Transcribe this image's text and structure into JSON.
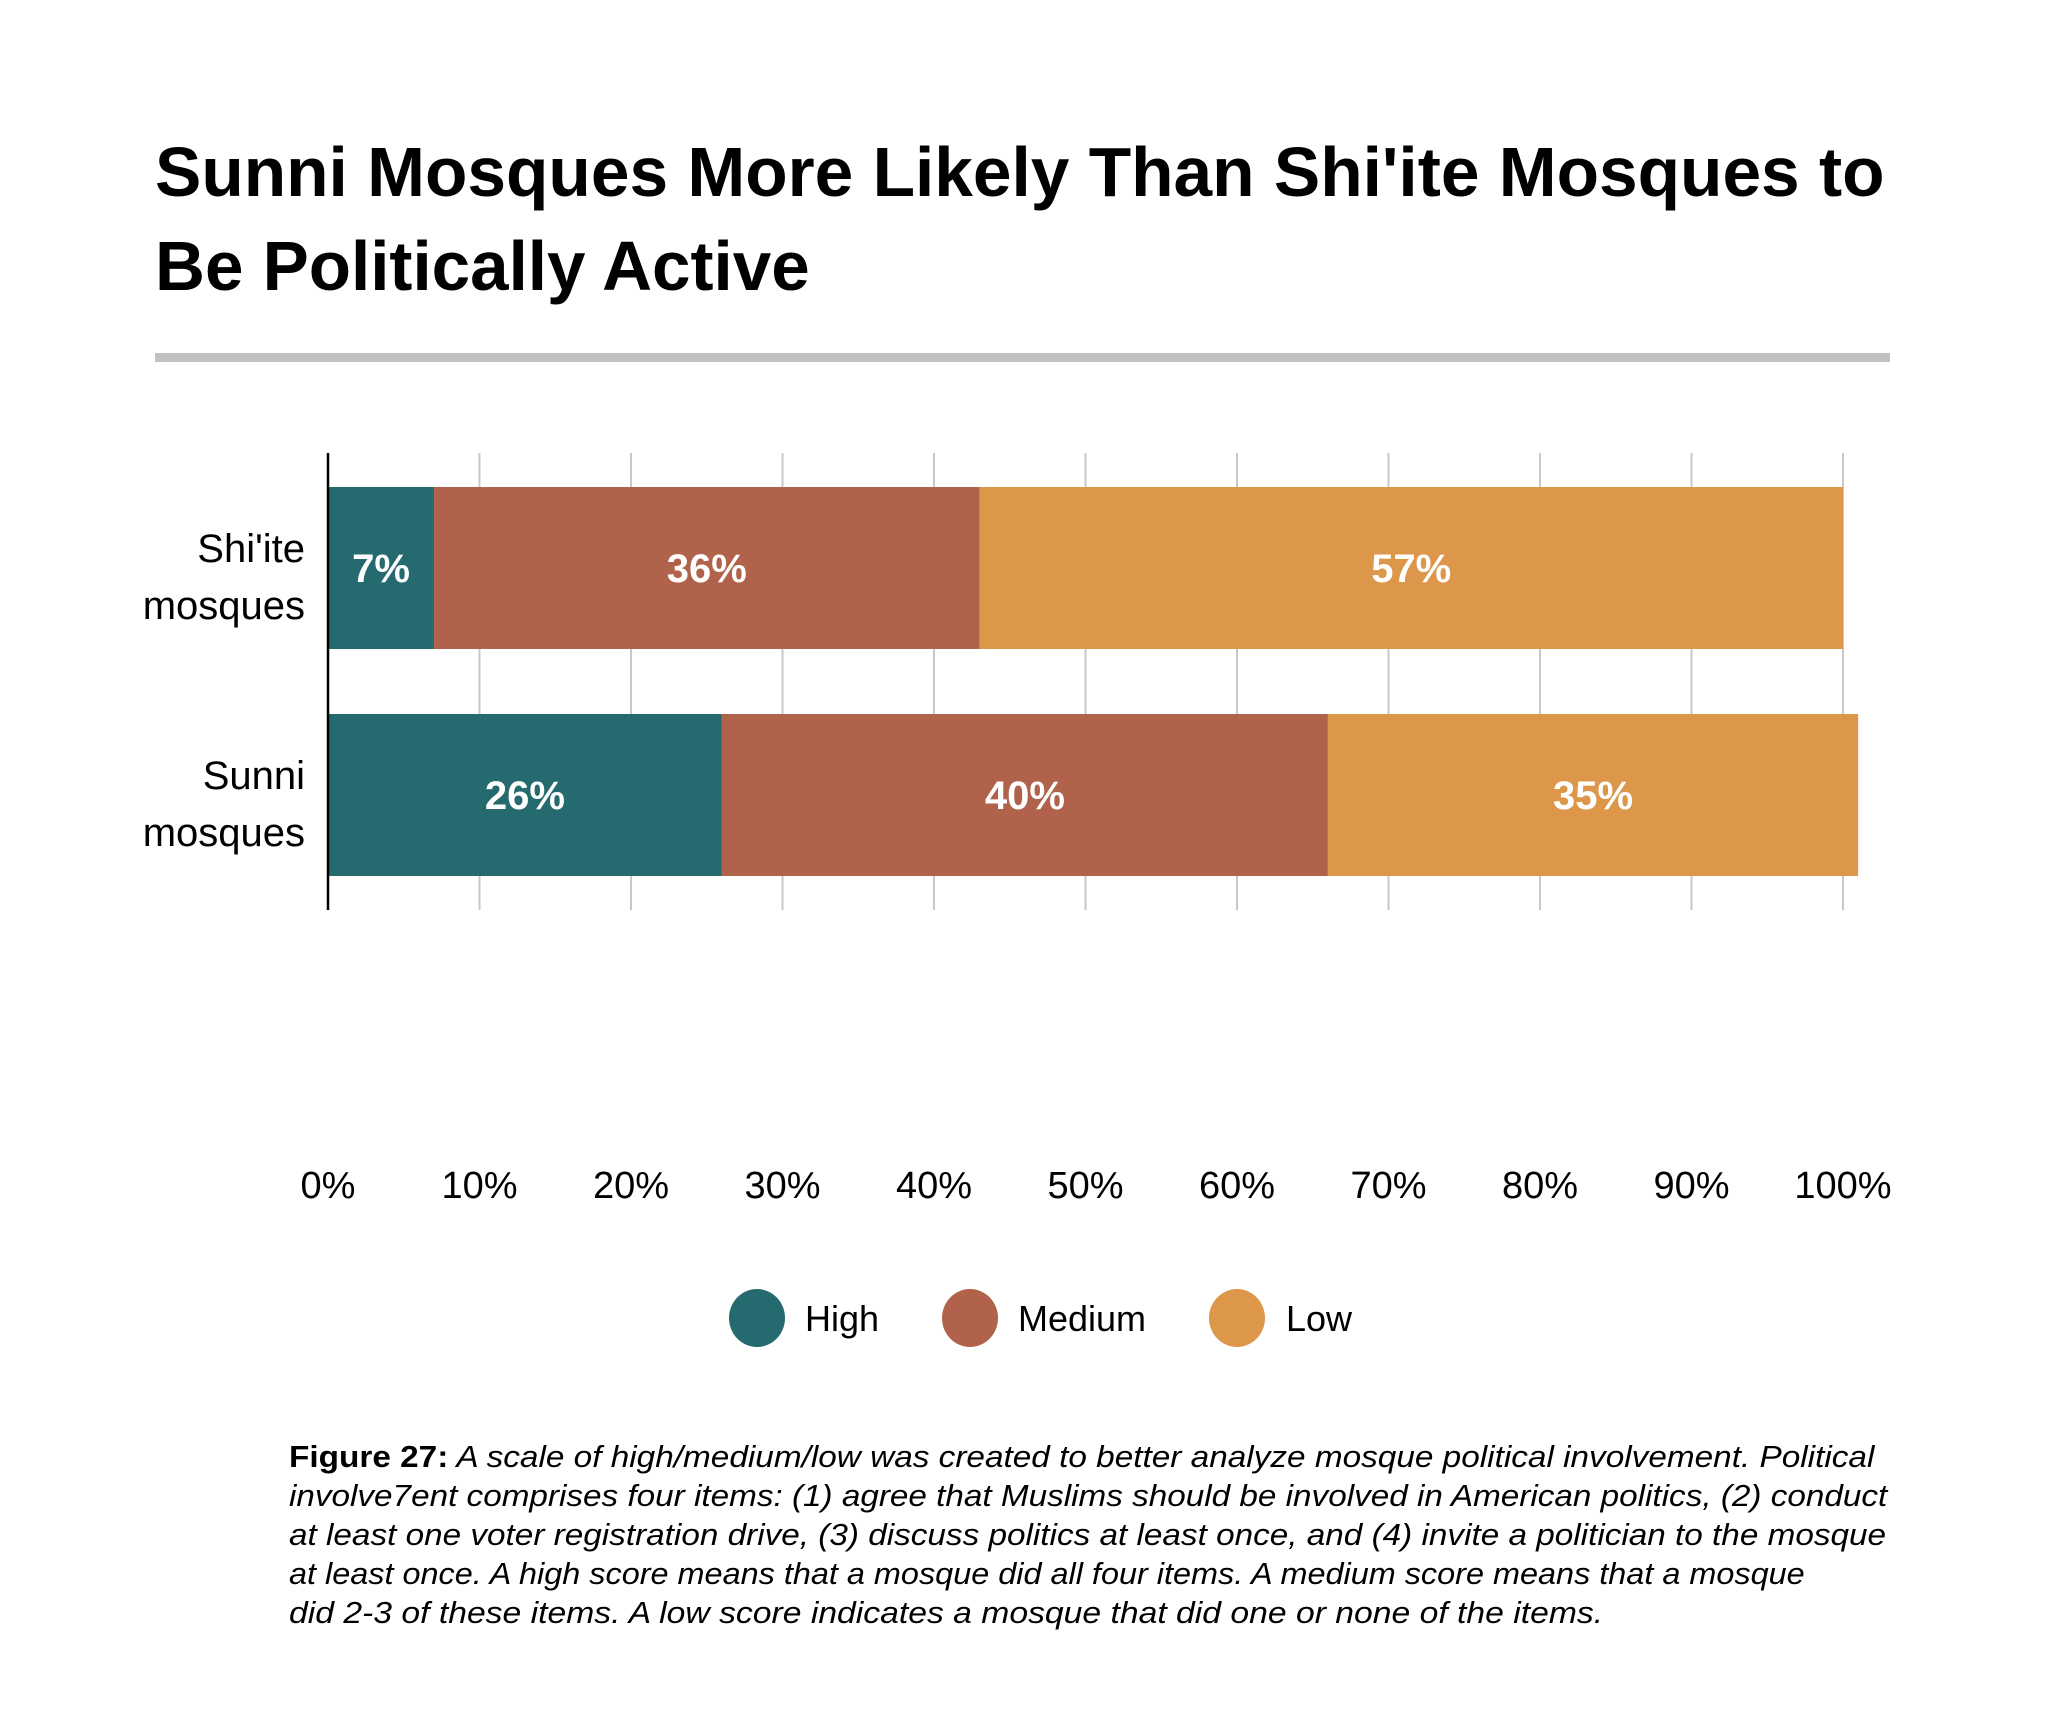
{
  "title": {
    "lines": [
      "Sunni Mosques More Likely Than Shi'ite Mosques to",
      "Be Politically Active"
    ]
  },
  "colors": {
    "high": "#256a6e",
    "medium": "#b0624a",
    "low": "#dc974a",
    "gridline": "#c8c8c8",
    "axis": "#000000",
    "rule": "#c0c1c1"
  },
  "chart_data": {
    "type": "bar",
    "orientation": "horizontal",
    "stacked": true,
    "title": "Sunni Mosques More Likely Than Shi'ite Mosques to Be Politically Active",
    "categories": [
      {
        "label_lines": [
          "Shi'ite",
          "mosques"
        ]
      },
      {
        "label_lines": [
          "Sunni",
          "mosques"
        ]
      }
    ],
    "series": [
      {
        "name": "High",
        "color_key": "high",
        "values": [
          7,
          26
        ],
        "labels": [
          "7%",
          "26%"
        ]
      },
      {
        "name": "Medium",
        "color_key": "medium",
        "values": [
          36,
          40
        ],
        "labels": [
          "36%",
          "40%"
        ]
      },
      {
        "name": "Low",
        "color_key": "low",
        "values": [
          57,
          35
        ],
        "labels": [
          "57%",
          "35%"
        ]
      }
    ],
    "xlim": [
      0,
      100
    ],
    "xticks": [
      0,
      10,
      20,
      30,
      40,
      50,
      60,
      70,
      80,
      90,
      100
    ],
    "xtick_labels": [
      "0%",
      "10%",
      "20%",
      "30%",
      "40%",
      "50%",
      "60%",
      "70%",
      "80%",
      "90%",
      "100%"
    ],
    "xlabel": "",
    "ylabel": "",
    "grid": true,
    "legend": {
      "placement": "bottom-center",
      "entries": [
        "High",
        "Medium",
        "Low"
      ]
    }
  },
  "caption": {
    "figure_label": "Figure 27:",
    "lines": [
      " A scale of high/medium/low was created to better analyze mosque political involvement. Political",
      "involve7ent comprises four items: (1) agree that Muslims should be involved in American politics, (2) conduct",
      "at least one voter registration drive, (3) discuss politics at least once, and (4) invite a politician to the mosque",
      "at least once. A high score means that a mosque did all four items. A medium score means that a mosque",
      "did 2-3 of these items. A low score indicates a mosque that did one or none of the items."
    ]
  }
}
